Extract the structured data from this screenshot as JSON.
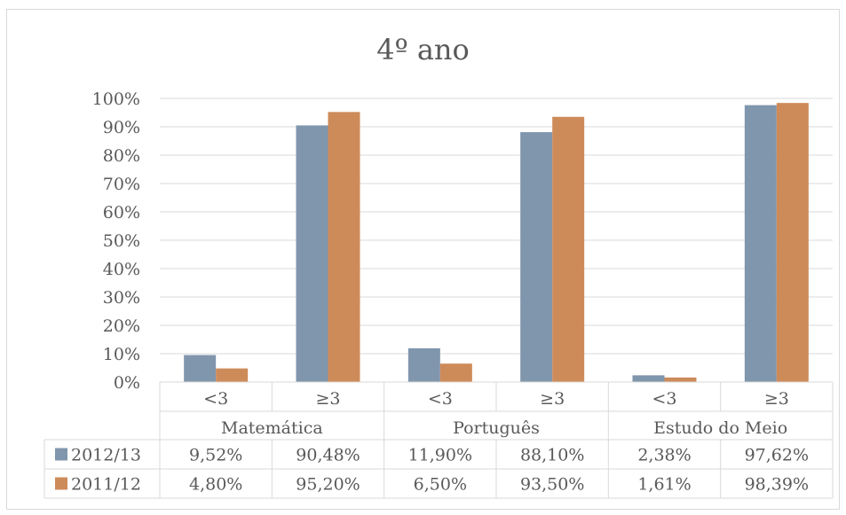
{
  "chart_data": {
    "type": "bar",
    "title": "4º ano",
    "groups": [
      {
        "name": "Matemática",
        "categories": [
          "<3",
          "≥3"
        ]
      },
      {
        "name": "Português",
        "categories": [
          "<3",
          "≥3"
        ]
      },
      {
        "name": "Estudo do Meio",
        "categories": [
          "<3",
          "≥3"
        ]
      }
    ],
    "series": [
      {
        "name": "2012/13",
        "color": "#8096ad",
        "values": [
          9.52,
          90.48,
          11.9,
          88.1,
          2.38,
          97.62
        ],
        "labels": [
          "9,52%",
          "90,48%",
          "11,90%",
          "88,10%",
          "2,38%",
          "97,62%"
        ]
      },
      {
        "name": "2011/12",
        "color": "#ce8b5a",
        "values": [
          4.8,
          95.2,
          6.5,
          93.5,
          1.61,
          98.39
        ],
        "labels": [
          "4,80%",
          "95,20%",
          "6,50%",
          "93,50%",
          "1,61%",
          "98,39%"
        ]
      }
    ],
    "ylim": [
      0,
      100
    ],
    "yticks": [
      "0%",
      "10%",
      "20%",
      "30%",
      "40%",
      "50%",
      "60%",
      "70%",
      "80%",
      "90%",
      "100%"
    ],
    "grid": true,
    "legend": "data-table"
  }
}
